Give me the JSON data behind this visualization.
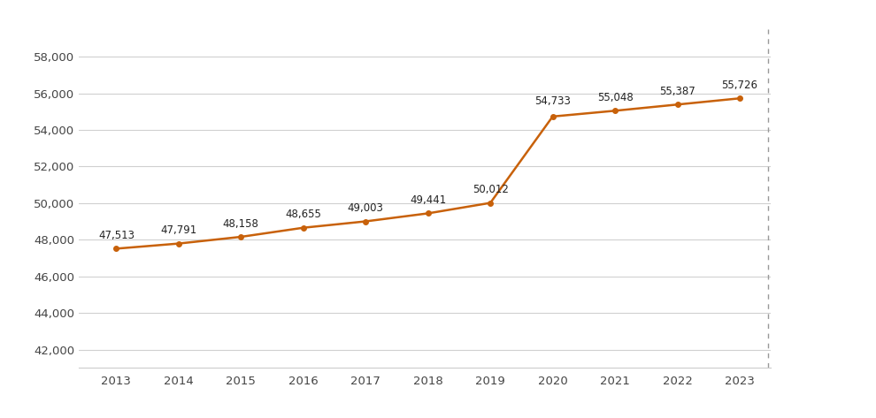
{
  "years": [
    2013,
    2014,
    2015,
    2016,
    2017,
    2018,
    2019,
    2020,
    2021,
    2022,
    2023
  ],
  "values": [
    47513,
    47791,
    48158,
    48655,
    49003,
    49441,
    50012,
    54733,
    55048,
    55387,
    55726
  ],
  "labels": [
    "47,513",
    "47,791",
    "48,158",
    "48,655",
    "49,003",
    "49,441",
    "50,012",
    "54,733",
    "55,048",
    "55,387",
    "55,726"
  ],
  "line_color": "#C8610A",
  "marker_style": "o",
  "marker_size": 4,
  "line_width": 1.8,
  "ylim": [
    41000,
    59500
  ],
  "yticks": [
    42000,
    44000,
    46000,
    48000,
    50000,
    52000,
    54000,
    56000,
    58000
  ],
  "ytick_labels": [
    "42,000",
    "44,000",
    "46,000",
    "48,000",
    "50,000",
    "52,000",
    "54,000",
    "56,000",
    "58,000"
  ],
  "background_color": "#ffffff",
  "grid_color": "#d0d0d0",
  "label_fontsize": 8.5,
  "tick_fontsize": 9.5,
  "dashed_line_color": "#999999"
}
